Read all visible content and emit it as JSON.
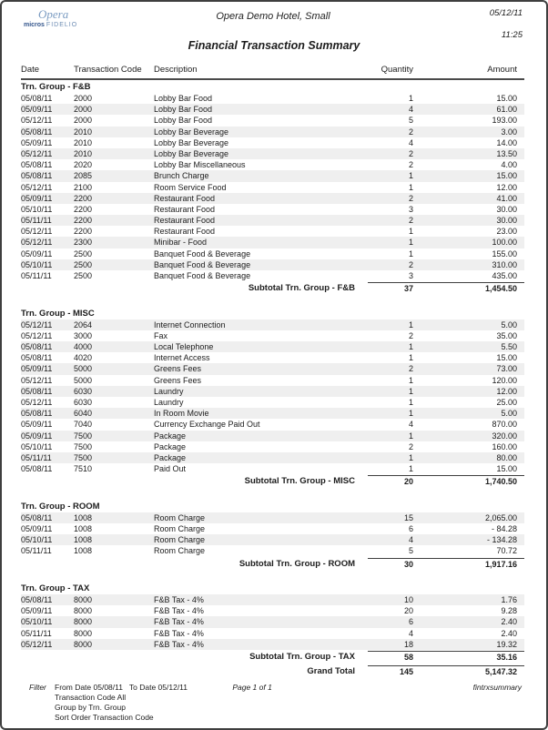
{
  "page": {
    "logo": {
      "opera": "Opera",
      "micros": "micros",
      "fidelio": "FIDELIO"
    },
    "hotel_name": "Opera Demo Hotel, Small",
    "report_date": "05/12/11",
    "report_time": "11:25",
    "report_title": "Financial Transaction Summary"
  },
  "table": {
    "columns": [
      "Date",
      "Transaction Code",
      "Description",
      "Quantity",
      "Amount"
    ],
    "groups": [
      {
        "name": "Trn. Group - F&B",
        "rows": [
          [
            "05/08/11",
            "2000",
            "Lobby Bar Food",
            "1",
            "15.00"
          ],
          [
            "05/09/11",
            "2000",
            "Lobby Bar Food",
            "4",
            "61.00"
          ],
          [
            "05/12/11",
            "2000",
            "Lobby Bar Food",
            "5",
            "193.00"
          ],
          [
            "05/08/11",
            "2010",
            "Lobby Bar Beverage",
            "2",
            "3.00"
          ],
          [
            "05/09/11",
            "2010",
            "Lobby Bar Beverage",
            "4",
            "14.00"
          ],
          [
            "05/12/11",
            "2010",
            "Lobby Bar Beverage",
            "2",
            "13.50"
          ],
          [
            "05/08/11",
            "2020",
            "Lobby Bar Miscellaneous",
            "2",
            "4.00"
          ],
          [
            "05/08/11",
            "2085",
            "Brunch Charge",
            "1",
            "15.00"
          ],
          [
            "05/12/11",
            "2100",
            "Room Service Food",
            "1",
            "12.00"
          ],
          [
            "05/09/11",
            "2200",
            "Restaurant Food",
            "2",
            "41.00"
          ],
          [
            "05/10/11",
            "2200",
            "Restaurant Food",
            "3",
            "30.00"
          ],
          [
            "05/11/11",
            "2200",
            "Restaurant Food",
            "2",
            "30.00"
          ],
          [
            "05/12/11",
            "2200",
            "Restaurant Food",
            "1",
            "23.00"
          ],
          [
            "05/12/11",
            "2300",
            "Minibar - Food",
            "1",
            "100.00"
          ],
          [
            "05/09/11",
            "2500",
            "Banquet Food & Beverage",
            "1",
            "155.00"
          ],
          [
            "05/10/11",
            "2500",
            "Banquet Food & Beverage",
            "2",
            "310.00"
          ],
          [
            "05/11/11",
            "2500",
            "Banquet Food & Beverage",
            "3",
            "435.00"
          ]
        ],
        "subtotal": {
          "label": "Subtotal Trn. Group - F&B",
          "quantity": "37",
          "amount": "1,454.50"
        }
      },
      {
        "name": "Trn. Group - MISC",
        "rows": [
          [
            "05/12/11",
            "2064",
            "Internet Connection",
            "1",
            "5.00"
          ],
          [
            "05/12/11",
            "3000",
            "Fax",
            "2",
            "35.00"
          ],
          [
            "05/08/11",
            "4000",
            "Local Telephone",
            "1",
            "5.50"
          ],
          [
            "05/08/11",
            "4020",
            "Internet Access",
            "1",
            "15.00"
          ],
          [
            "05/09/11",
            "5000",
            "Greens Fees",
            "2",
            "73.00"
          ],
          [
            "05/12/11",
            "5000",
            "Greens Fees",
            "1",
            "120.00"
          ],
          [
            "05/08/11",
            "6030",
            "Laundry",
            "1",
            "12.00"
          ],
          [
            "05/12/11",
            "6030",
            "Laundry",
            "1",
            "25.00"
          ],
          [
            "05/08/11",
            "6040",
            "In Room Movie",
            "1",
            "5.00"
          ],
          [
            "05/09/11",
            "7040",
            "Currency Exchange Paid Out",
            "4",
            "870.00"
          ],
          [
            "05/09/11",
            "7500",
            "Package",
            "1",
            "320.00"
          ],
          [
            "05/10/11",
            "7500",
            "Package",
            "2",
            "160.00"
          ],
          [
            "05/11/11",
            "7500",
            "Package",
            "1",
            "80.00"
          ],
          [
            "05/08/11",
            "7510",
            "Paid Out",
            "1",
            "15.00"
          ]
        ],
        "subtotal": {
          "label": "Subtotal Trn. Group - MISC",
          "quantity": "20",
          "amount": "1,740.50"
        }
      },
      {
        "name": "Trn. Group - ROOM",
        "rows": [
          [
            "05/08/11",
            "1008",
            "Room Charge",
            "15",
            "2,065.00"
          ],
          [
            "05/09/11",
            "1008",
            "Room Charge",
            "6",
            "- 84.28"
          ],
          [
            "05/10/11",
            "1008",
            "Room Charge",
            "4",
            "- 134.28"
          ],
          [
            "05/11/11",
            "1008",
            "Room Charge",
            "5",
            "70.72"
          ]
        ],
        "subtotal": {
          "label": "Subtotal Trn. Group - ROOM",
          "quantity": "30",
          "amount": "1,917.16"
        }
      },
      {
        "name": "Trn. Group - TAX",
        "rows": [
          [
            "05/08/11",
            "8000",
            "F&B Tax - 4%",
            "10",
            "1.76"
          ],
          [
            "05/09/11",
            "8000",
            "F&B Tax - 4%",
            "20",
            "9.28"
          ],
          [
            "05/10/11",
            "8000",
            "F&B Tax - 4%",
            "6",
            "2.40"
          ],
          [
            "05/11/11",
            "8000",
            "F&B Tax - 4%",
            "4",
            "2.40"
          ],
          [
            "05/12/11",
            "8000",
            "F&B Tax - 4%",
            "18",
            "19.32"
          ]
        ],
        "subtotal": {
          "label": "Subtotal Trn. Group - TAX",
          "quantity": "58",
          "amount": "35.16"
        }
      }
    ],
    "grand_total": {
      "label": "Grand Total",
      "quantity": "145",
      "amount": "5,147.32"
    }
  },
  "footer": {
    "filter_label": "Filter",
    "filter_lines": [
      "From Date 05/08/11   To Date 05/12/11",
      "Transaction Code All",
      "Group by Trn. Group",
      "Sort Order Transaction Code"
    ],
    "page_number": "Page 1 of 1",
    "report_id": "fintrxsummary"
  },
  "colors": {
    "stripe": "#efefef",
    "logo_opera": "#7b9cc2",
    "logo_micros": "#33558c",
    "header_rule": "#4a4a4a"
  }
}
